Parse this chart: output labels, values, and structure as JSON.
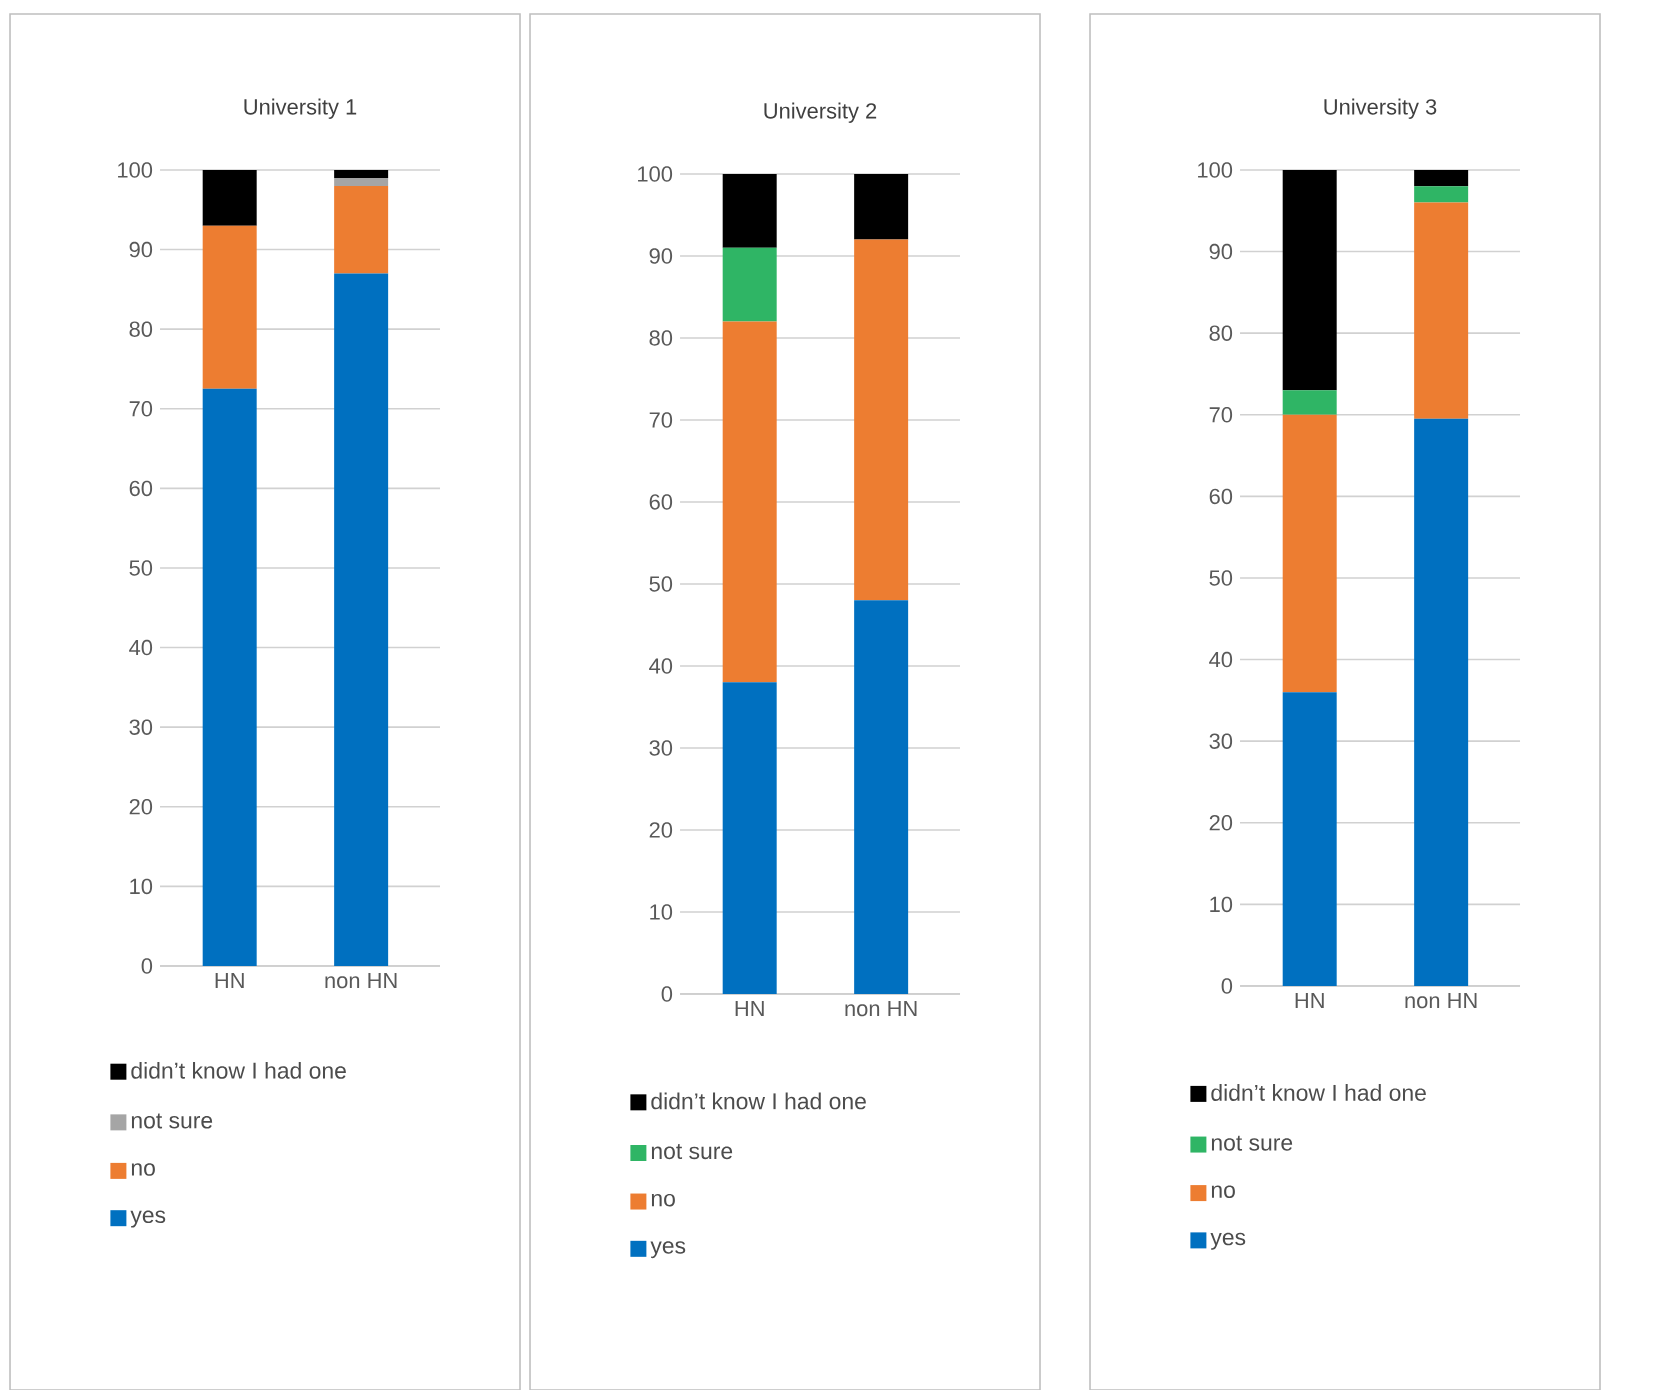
{
  "chart_data": [
    {
      "type": "bar",
      "title": "University 1",
      "categories": [
        "HN",
        "non HN"
      ],
      "stacked": true,
      "ylim": [
        0,
        100
      ],
      "yticks": [
        0,
        10,
        20,
        30,
        40,
        50,
        60,
        70,
        80,
        90,
        100
      ],
      "grid": "y",
      "legend": "bottom",
      "series": [
        {
          "name": "yes",
          "color": "#0070c0",
          "values": [
            72.5,
            87
          ]
        },
        {
          "name": "no",
          "color": "#ed7d31",
          "values": [
            20.5,
            11
          ]
        },
        {
          "name": "not sure",
          "color": "#a5a5a5",
          "values": [
            0,
            1
          ]
        },
        {
          "name": "didn’t know I had one",
          "color": "#000000",
          "values": [
            7,
            1
          ]
        }
      ]
    },
    {
      "type": "bar",
      "title": "University 2",
      "categories": [
        "HN",
        "non HN"
      ],
      "stacked": true,
      "ylim": [
        0,
        100
      ],
      "yticks": [
        0,
        10,
        20,
        30,
        40,
        50,
        60,
        70,
        80,
        90,
        100
      ],
      "grid": "y",
      "legend": "bottom",
      "series": [
        {
          "name": "yes",
          "color": "#0070c0",
          "values": [
            38,
            48
          ]
        },
        {
          "name": "no",
          "color": "#ed7d31",
          "values": [
            44,
            44
          ]
        },
        {
          "name": "not sure",
          "color": "#2fb565",
          "values": [
            9,
            0
          ]
        },
        {
          "name": "didn’t know I had one",
          "color": "#000000",
          "values": [
            9,
            8
          ]
        }
      ]
    },
    {
      "type": "bar",
      "title": "University 3",
      "categories": [
        "HN",
        "non HN"
      ],
      "stacked": true,
      "ylim": [
        0,
        100
      ],
      "yticks": [
        0,
        10,
        20,
        30,
        40,
        50,
        60,
        70,
        80,
        90,
        100
      ],
      "grid": "y",
      "legend": "bottom",
      "series": [
        {
          "name": "yes",
          "color": "#0070c0",
          "values": [
            36,
            69.5
          ]
        },
        {
          "name": "no",
          "color": "#ed7d31",
          "values": [
            34,
            26.5
          ]
        },
        {
          "name": "not sure",
          "color": "#2fb565",
          "values": [
            3,
            2
          ]
        },
        {
          "name": "didn’t know I had one",
          "color": "#000000",
          "values": [
            27,
            2
          ]
        }
      ]
    }
  ]
}
